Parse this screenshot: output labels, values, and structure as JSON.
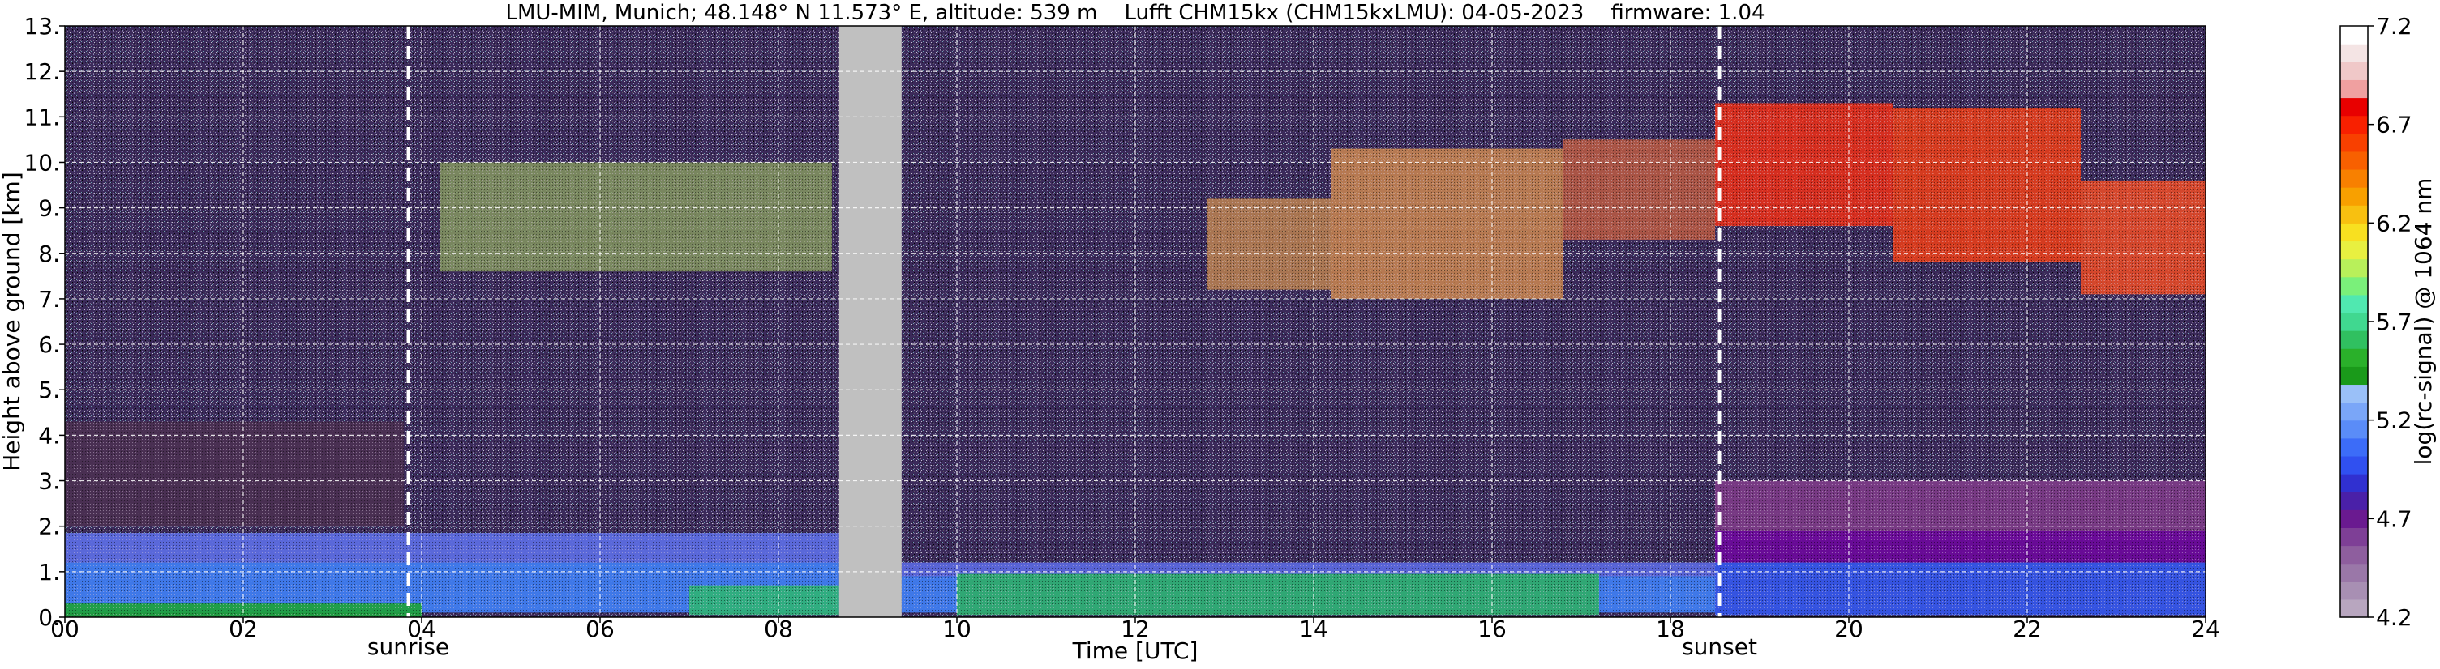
{
  "chart_data": {
    "type": "heatmap",
    "title": "LMU-MIM, Munich; 48.148° N 11.573° E, altitude: 539 m    Lufft CHM15kx (CHM15kxLMU): 04-05-2023    firmware: 1.04",
    "xlabel": "Time [UTC]",
    "ylabel": "Height above ground [km]",
    "xlim": [
      0,
      24
    ],
    "ylim": [
      0,
      13
    ],
    "x_ticks": [
      "00",
      "02",
      "04",
      "06",
      "08",
      "10",
      "12",
      "14",
      "16",
      "18",
      "20",
      "22",
      "24"
    ],
    "x_tick_values": [
      0,
      2,
      4,
      6,
      8,
      10,
      12,
      14,
      16,
      18,
      20,
      22,
      24
    ],
    "y_ticks": [
      "0.",
      "1.",
      "2.",
      "3.",
      "4.",
      "5.",
      "6.",
      "7.",
      "8.",
      "9.",
      "10.",
      "11.",
      "12.",
      "13."
    ],
    "y_tick_values": [
      0,
      1,
      2,
      3,
      4,
      5,
      6,
      7,
      8,
      9,
      10,
      11,
      12,
      13
    ],
    "grid": true,
    "events": [
      {
        "label": "sunrise",
        "time": 3.85
      },
      {
        "label": "sunset",
        "time": 18.55
      }
    ],
    "missing_data": {
      "start": 8.68,
      "end": 9.38,
      "color": "#c0c0c0"
    },
    "layers": [
      {
        "kind": "background",
        "start": 0,
        "end": 24,
        "bottom": 0,
        "top": 13,
        "color": "#3b2a5a"
      },
      {
        "kind": "residual-layer",
        "start": 0,
        "end": 3.8,
        "bottom": 2.0,
        "top": 4.3,
        "color": "#4a2f52"
      },
      {
        "kind": "boundary-layer-top",
        "start": 0,
        "end": 8.68,
        "bottom": 1.2,
        "top": 1.85,
        "color": "#5c6be0"
      },
      {
        "kind": "boundary-layer-top",
        "start": 9.38,
        "end": 18.5,
        "bottom": 0.9,
        "top": 1.2,
        "color": "#5a66dc"
      },
      {
        "kind": "boundary-layer",
        "start": 0,
        "end": 8.68,
        "bottom": 0.1,
        "top": 1.2,
        "color": "#3f7cf0"
      },
      {
        "kind": "boundary-layer",
        "start": 9.38,
        "end": 18.5,
        "bottom": 0.1,
        "top": 0.9,
        "color": "#3f7cf0"
      },
      {
        "kind": "surface-layer",
        "start": 7.0,
        "end": 8.68,
        "bottom": 0.05,
        "top": 0.7,
        "color": "#2fb07a"
      },
      {
        "kind": "surface-layer",
        "start": 10.0,
        "end": 17.2,
        "bottom": 0.05,
        "top": 0.95,
        "color": "#2faa6e"
      },
      {
        "kind": "surface-layer",
        "start": 0,
        "end": 4.0,
        "bottom": 0.0,
        "top": 0.3,
        "color": "#1fa040"
      },
      {
        "kind": "evening-residual",
        "start": 18.5,
        "end": 24,
        "bottom": 1.7,
        "top": 3.0,
        "color": "#7a3a86"
      },
      {
        "kind": "evening-layer-top",
        "start": 18.5,
        "end": 24,
        "bottom": 1.2,
        "top": 1.9,
        "color": "#6a0a9a"
      },
      {
        "kind": "evening-layer",
        "start": 18.5,
        "end": 24,
        "bottom": 0.05,
        "top": 1.2,
        "color": "#3555e8"
      },
      {
        "kind": "cirrus",
        "start": 4.2,
        "end": 8.6,
        "bottom": 7.6,
        "top": 10.0,
        "color": "#8aa060"
      },
      {
        "kind": "cirrus",
        "start": 12.8,
        "end": 14.2,
        "bottom": 7.2,
        "top": 9.2,
        "color": "#c88a50"
      },
      {
        "kind": "cirrus",
        "start": 14.2,
        "end": 16.8,
        "bottom": 7.0,
        "top": 10.3,
        "color": "#d89050"
      },
      {
        "kind": "cirrus",
        "start": 16.8,
        "end": 18.5,
        "bottom": 8.3,
        "top": 10.5,
        "color": "#c86040"
      },
      {
        "kind": "cirrus",
        "start": 18.5,
        "end": 20.5,
        "bottom": 8.6,
        "top": 11.3,
        "color": "#ff3010"
      },
      {
        "kind": "cirrus",
        "start": 20.5,
        "end": 22.6,
        "bottom": 7.8,
        "top": 11.2,
        "color": "#ff4010"
      },
      {
        "kind": "cirrus",
        "start": 22.6,
        "end": 24,
        "bottom": 7.1,
        "top": 9.6,
        "color": "#ff5020"
      }
    ],
    "colorbar": {
      "label": "log(rc-signal) @ 1064 nm",
      "min": 4.2,
      "max": 7.2,
      "ticks": [
        "4.2",
        "4.7",
        "5.2",
        "5.7",
        "6.2",
        "6.7",
        "7.2"
      ],
      "tick_values": [
        4.2,
        4.7,
        5.2,
        5.7,
        6.2,
        6.7,
        7.2
      ],
      "colors": [
        "#b8a6bf",
        "#a88fb3",
        "#9a77a8",
        "#8e5e9e",
        "#7e3f96",
        "#6a1a90",
        "#4a20a8",
        "#3030d0",
        "#3050f0",
        "#3c6cf8",
        "#5a8cf8",
        "#7aa6f8",
        "#9ac0f8",
        "#1a9a1a",
        "#2ab02a",
        "#30c060",
        "#40d890",
        "#50e8b0",
        "#7af07a",
        "#b8f05a",
        "#e8f040",
        "#f8e020",
        "#f8c010",
        "#f8a000",
        "#f88000",
        "#f86000",
        "#f84000",
        "#f82000",
        "#e80000",
        "#f0a0a0",
        "#f0c8c8",
        "#f4e4e4",
        "#ffffff"
      ]
    }
  }
}
